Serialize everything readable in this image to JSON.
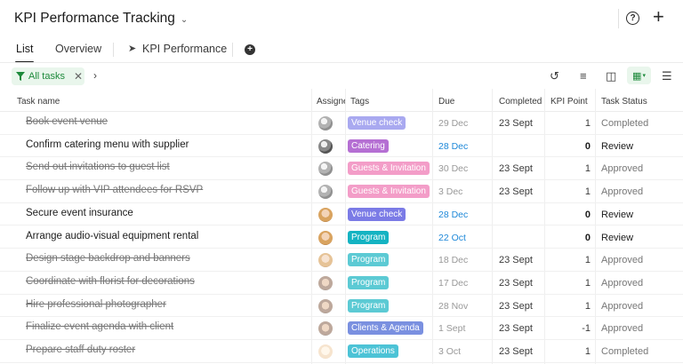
{
  "header": {
    "title": "KPI Performance Tracking"
  },
  "tabs": [
    {
      "label": "List"
    },
    {
      "label": "Overview"
    },
    {
      "label": "KPI Performance"
    }
  ],
  "filter": {
    "label": "All tasks"
  },
  "columns": {
    "task": "Task name",
    "assignee": "Assignee",
    "tags": "Tags",
    "due": "Due",
    "completed": "Completed",
    "kpi": "KPI Point",
    "status": "Task Status"
  },
  "colors": {
    "accent_green": "#1e8a3c",
    "due_blue": "#1e88d8"
  },
  "rows": [
    {
      "task": "Book event venue",
      "done": true,
      "avatar": "av-a",
      "tag": "Venue check",
      "tag_color": "#a9a9f0",
      "due": "29 Dec",
      "due_style": "muted",
      "completed": "23 Sept",
      "kpi": "1",
      "status": "Completed"
    },
    {
      "task": "Confirm catering menu with supplier",
      "done": false,
      "avatar": "av-a",
      "tag": "Catering",
      "tag_color": "#b56fd3",
      "due": "28 Dec",
      "due_style": "blue",
      "completed": "",
      "kpi": "0",
      "status": "Review"
    },
    {
      "task": "Send out invitations to guest list",
      "done": true,
      "avatar": "av-a",
      "tag": "Guests & Invitation",
      "tag_color": "#f39dc8",
      "due": "30 Dec",
      "due_style": "muted",
      "completed": "23 Sept",
      "kpi": "1",
      "status": "Approved"
    },
    {
      "task": "Follow up with VIP attendees for RSVP",
      "done": true,
      "avatar": "av-a",
      "tag": "Guests & Invitation",
      "tag_color": "#f39dc8",
      "due": "3 Dec",
      "due_style": "muted",
      "completed": "23 Sept",
      "kpi": "1",
      "status": "Approved"
    },
    {
      "task": "Secure event insurance",
      "done": false,
      "avatar": "av-b",
      "tag": "Venue check",
      "tag_color": "#7b7be6",
      "due": "28 Dec",
      "due_style": "blue",
      "completed": "",
      "kpi": "0",
      "status": "Review"
    },
    {
      "task": "Arrange audio-visual equipment rental",
      "done": false,
      "avatar": "av-b",
      "tag": "Program",
      "tag_color": "#14b3c2",
      "due": "22 Oct",
      "due_style": "blue",
      "completed": "",
      "kpi": "0",
      "status": "Review"
    },
    {
      "task": "Design stage backdrop and banners",
      "done": true,
      "avatar": "av-b",
      "tag": "Program",
      "tag_color": "#5ccad4",
      "due": "18 Dec",
      "due_style": "muted",
      "completed": "23 Sept",
      "kpi": "1",
      "status": "Approved"
    },
    {
      "task": "Coordinate with florist for decorations",
      "done": true,
      "avatar": "av-c",
      "tag": "Program",
      "tag_color": "#5ccad4",
      "due": "17 Dec",
      "due_style": "muted",
      "completed": "23 Sept",
      "kpi": "1",
      "status": "Approved"
    },
    {
      "task": "Hire professional photographer",
      "done": true,
      "avatar": "av-c",
      "tag": "Program",
      "tag_color": "#5ccad4",
      "due": "28 Nov",
      "due_style": "muted",
      "completed": "23 Sept",
      "kpi": "1",
      "status": "Approved"
    },
    {
      "task": "Finalize event agenda with client",
      "done": true,
      "avatar": "av-c",
      "tag": "Clients & Agenda",
      "tag_color": "#7a90e0",
      "due": "1 Sept",
      "due_style": "muted",
      "completed": "23 Sept",
      "kpi": "-1",
      "status": "Approved"
    },
    {
      "task": "Prepare staff duty roster",
      "done": true,
      "avatar": "av-d",
      "tag": "Operations",
      "tag_color": "#4cc3d6",
      "due": "3 Oct",
      "due_style": "muted",
      "completed": "23 Sept",
      "kpi": "1",
      "status": "Completed"
    }
  ]
}
